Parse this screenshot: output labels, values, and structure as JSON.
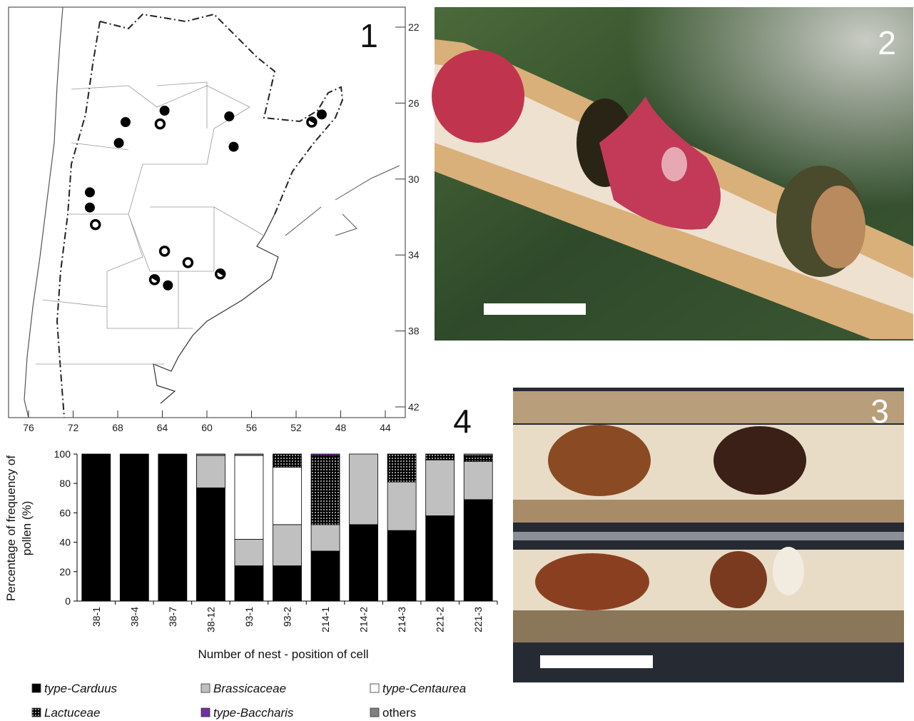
{
  "panels": {
    "map": "1",
    "photo_nest": "2",
    "photo_cells": "3",
    "chart": "4"
  },
  "map": {
    "lat_ticks": [
      22,
      26,
      30,
      34,
      38,
      42
    ],
    "lon_ticks": [
      76,
      72,
      68,
      64,
      60,
      56,
      52,
      48,
      44
    ],
    "lon_range": [
      76,
      44
    ],
    "lat_range": [
      22,
      42
    ],
    "sites": [
      {
        "lon": 67.3,
        "lat": 27.0,
        "kind": "filled"
      },
      {
        "lon": 63.8,
        "lat": 26.4,
        "kind": "filled"
      },
      {
        "lon": 64.2,
        "lat": 27.1,
        "kind": "open"
      },
      {
        "lon": 58.0,
        "lat": 26.7,
        "kind": "filled"
      },
      {
        "lon": 67.9,
        "lat": 28.1,
        "kind": "filled"
      },
      {
        "lon": 57.6,
        "lat": 28.3,
        "kind": "filled"
      },
      {
        "lon": 49.7,
        "lat": 26.6,
        "kind": "filled"
      },
      {
        "lon": 50.6,
        "lat": 27.0,
        "kind": "half"
      },
      {
        "lon": 70.5,
        "lat": 30.7,
        "kind": "filled"
      },
      {
        "lon": 70.5,
        "lat": 31.5,
        "kind": "filled"
      },
      {
        "lon": 70.0,
        "lat": 32.4,
        "kind": "open"
      },
      {
        "lon": 63.8,
        "lat": 33.8,
        "kind": "open"
      },
      {
        "lon": 61.7,
        "lat": 34.4,
        "kind": "open"
      },
      {
        "lon": 58.8,
        "lat": 35.0,
        "kind": "half"
      },
      {
        "lon": 64.7,
        "lat": 35.3,
        "kind": "half"
      },
      {
        "lon": 63.5,
        "lat": 35.6,
        "kind": "filled"
      }
    ]
  },
  "chart_data": {
    "type": "stacked_bar",
    "x_label": "Number of nest - position of cell",
    "y_label": "Percentage of frequency of pollen (%)",
    "categories": [
      "38-1",
      "38-4",
      "38-7",
      "38-12",
      "93-1",
      "93-2",
      "214-1",
      "214-2",
      "214-3",
      "221-2",
      "221-3"
    ],
    "ylim": [
      0,
      100
    ],
    "yticks": [
      0,
      20,
      40,
      60,
      80,
      100
    ],
    "grid": false,
    "series": [
      {
        "name": "type-Carduus",
        "color": "#000000",
        "italic": true,
        "values": [
          100,
          100,
          100,
          77,
          24,
          24,
          34,
          52,
          48,
          58,
          69
        ]
      },
      {
        "name": "Brassicaceae",
        "color": "#c0c0c0",
        "italic": true,
        "values": [
          0,
          0,
          0,
          22,
          18,
          28,
          18,
          48,
          33,
          38,
          26
        ]
      },
      {
        "name": "type-Centaurea",
        "color": "#ffffff",
        "italic": true,
        "values": [
          0,
          0,
          0,
          0,
          57,
          39,
          0,
          0,
          0,
          0,
          0
        ]
      },
      {
        "name": "Lactuceae",
        "color": "dots",
        "italic": true,
        "values": [
          0,
          0,
          0,
          0,
          0,
          9,
          47,
          0,
          19,
          4,
          4
        ]
      },
      {
        "name": "type-Baccharis",
        "color": "#7030a0",
        "italic": true,
        "values": [
          0,
          0,
          0,
          0,
          0,
          0,
          1,
          0,
          0,
          0,
          0
        ]
      },
      {
        "name": "others",
        "color": "#808080",
        "italic": false,
        "values": [
          0,
          0,
          0,
          1,
          1,
          0,
          0,
          0,
          0,
          0,
          1
        ]
      }
    ]
  }
}
